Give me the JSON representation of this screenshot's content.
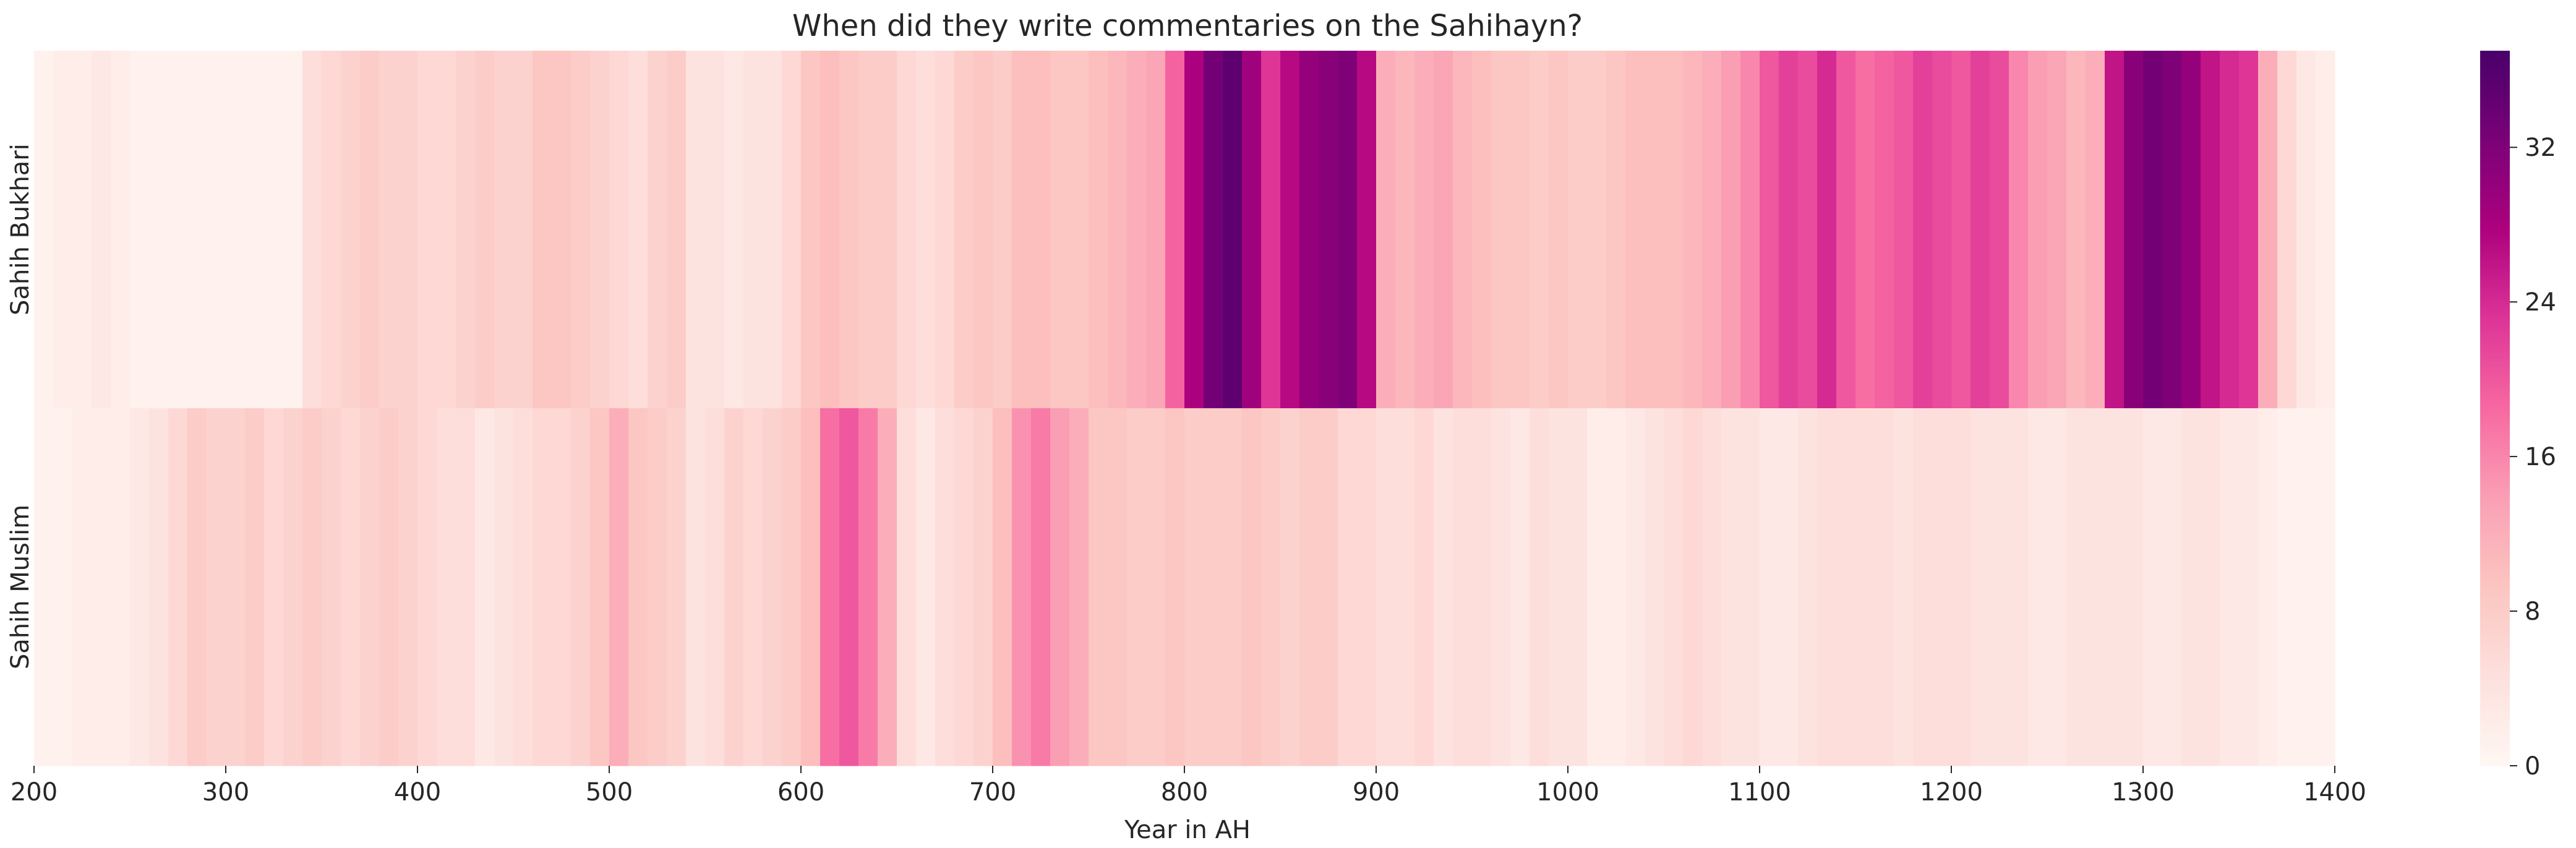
{
  "chart_data": {
    "type": "heatmap",
    "title": "When did they write commentaries on the Sahihayn?",
    "xlabel": "Year in AH",
    "ylabel": "",
    "x_range": [
      200,
      1400
    ],
    "x_ticks": [
      "200",
      "300",
      "400",
      "500",
      "600",
      "700",
      "800",
      "900",
      "1000",
      "1100",
      "1200",
      "1300",
      "1400"
    ],
    "colorbar": {
      "range": [
        0,
        37
      ],
      "ticks": [
        "0",
        "8",
        "16",
        "24",
        "32"
      ],
      "colormap": "RdPu"
    },
    "colors": [
      "#fff7f3",
      "#fde0dd",
      "#fcc5c0",
      "#fa9fb5",
      "#f768a1",
      "#dd3497",
      "#ae017e",
      "#7a0177",
      "#49006a"
    ],
    "bin_width": 10,
    "bin_starts": [
      200,
      210,
      220,
      230,
      240,
      250,
      260,
      270,
      280,
      290,
      300,
      310,
      320,
      330,
      340,
      350,
      360,
      370,
      380,
      390,
      400,
      410,
      420,
      430,
      440,
      450,
      460,
      470,
      480,
      490,
      500,
      510,
      520,
      530,
      540,
      550,
      560,
      570,
      580,
      590,
      600,
      610,
      620,
      630,
      640,
      650,
      660,
      670,
      680,
      690,
      700,
      710,
      720,
      730,
      740,
      750,
      760,
      770,
      780,
      790,
      800,
      810,
      820,
      830,
      840,
      850,
      860,
      870,
      880,
      890,
      900,
      910,
      920,
      930,
      940,
      950,
      960,
      970,
      980,
      990,
      1000,
      1010,
      1020,
      1030,
      1040,
      1050,
      1060,
      1070,
      1080,
      1090,
      1100,
      1110,
      1120,
      1130,
      1140,
      1150,
      1160,
      1170,
      1180,
      1190,
      1200,
      1210,
      1220,
      1230,
      1240,
      1250,
      1260,
      1270,
      1280,
      1290,
      1300,
      1310,
      1320,
      1330,
      1340,
      1350,
      1360,
      1370,
      1380,
      1390
    ],
    "rows": [
      {
        "name": "Sahih Bukhari",
        "values": [
          1,
          2,
          2,
          3,
          2,
          1,
          1,
          1,
          1,
          1,
          1,
          1,
          1,
          1,
          5,
          6,
          7,
          8,
          7,
          7,
          6,
          6,
          7,
          8,
          7,
          7,
          9,
          9,
          8,
          7,
          6,
          5,
          7,
          8,
          4,
          4,
          3,
          4,
          4,
          6,
          9,
          10,
          9,
          8,
          8,
          6,
          5,
          6,
          8,
          9,
          8,
          10,
          10,
          9,
          9,
          10,
          11,
          12,
          13,
          19,
          28,
          33,
          35,
          29,
          23,
          27,
          30,
          31,
          32,
          27,
          12,
          11,
          12,
          13,
          11,
          10,
          9,
          9,
          8,
          9,
          8,
          8,
          9,
          10,
          10,
          10,
          11,
          12,
          14,
          16,
          20,
          22,
          21,
          24,
          20,
          18,
          19,
          20,
          22,
          21,
          20,
          22,
          21,
          16,
          14,
          13,
          11,
          12,
          26,
          31,
          33,
          32,
          30,
          26,
          24,
          23,
          12,
          6,
          3,
          2
        ]
      },
      {
        "name": "Sahih Muslim",
        "values": [
          1,
          1,
          2,
          2,
          2,
          3,
          4,
          6,
          8,
          7,
          7,
          8,
          6,
          7,
          8,
          7,
          6,
          7,
          8,
          7,
          6,
          5,
          5,
          3,
          4,
          5,
          6,
          6,
          7,
          9,
          12,
          9,
          8,
          7,
          4,
          5,
          7,
          6,
          7,
          8,
          10,
          18,
          20,
          17,
          12,
          5,
          3,
          5,
          6,
          7,
          10,
          15,
          17,
          14,
          12,
          9,
          9,
          8,
          8,
          9,
          8,
          8,
          8,
          9,
          8,
          7,
          8,
          8,
          6,
          6,
          5,
          5,
          6,
          4,
          5,
          5,
          4,
          3,
          5,
          4,
          4,
          2,
          2,
          3,
          4,
          5,
          6,
          5,
          4,
          4,
          3,
          3,
          4,
          5,
          5,
          5,
          5,
          4,
          5,
          5,
          5,
          4,
          4,
          4,
          3,
          3,
          4,
          4,
          4,
          4,
          3,
          3,
          4,
          4,
          3,
          3,
          2,
          1,
          1,
          1
        ]
      }
    ]
  }
}
